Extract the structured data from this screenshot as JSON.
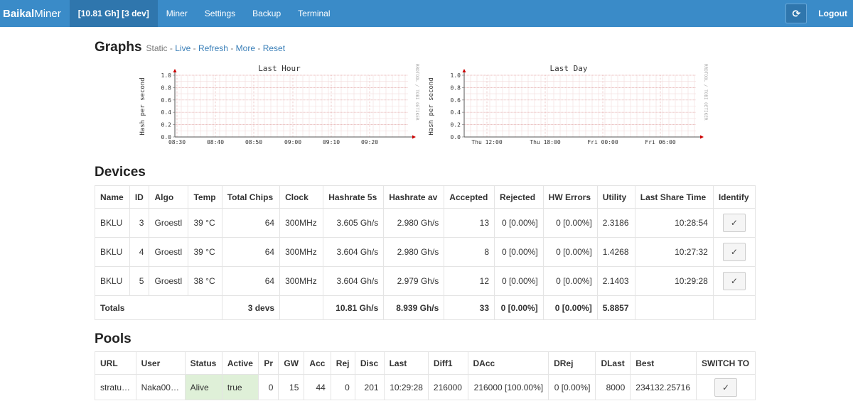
{
  "navbar": {
    "brand_bold": "Baikal",
    "brand_light": "Miner",
    "items": [
      {
        "label": "[10.81 Gh] [3 dev]"
      },
      {
        "label": "Miner"
      },
      {
        "label": "Settings"
      },
      {
        "label": "Backup"
      },
      {
        "label": "Terminal"
      }
    ],
    "refresh_glyph": "⟳",
    "logout": "Logout"
  },
  "graphs": {
    "title": "Graphs",
    "links": {
      "static": "Static",
      "live": "Live",
      "refresh": "Refresh",
      "more": "More",
      "reset": "Reset",
      "sep": "-"
    },
    "hour": {
      "title": "Last Hour",
      "ylabel": "Hash per second",
      "side": "RRDTOOL / TOBI OETIKER",
      "yticks": [
        "1.0",
        "0.8",
        "0.6",
        "0.4",
        "0.2",
        "0.0"
      ],
      "xticks": [
        "08:30",
        "08:40",
        "08:50",
        "09:00",
        "09:10",
        "09:20"
      ]
    },
    "day": {
      "title": "Last Day",
      "ylabel": "Hash per second",
      "side": "RRDTOOL / TOBI OETIKER",
      "yticks": [
        "1.0",
        "0.8",
        "0.6",
        "0.4",
        "0.2",
        "0.0"
      ],
      "xticks": [
        "Thu 12:00",
        "Thu 18:00",
        "Fri 00:00",
        "Fri 06:00"
      ]
    }
  },
  "devices": {
    "title": "Devices",
    "headers": [
      "Name",
      "ID",
      "Algo",
      "Temp",
      "Total Chips",
      "Clock",
      "Hashrate 5s",
      "Hashrate av",
      "Accepted",
      "Rejected",
      "HW Errors",
      "Utility",
      "Last Share Time",
      "Identify"
    ],
    "rows": [
      {
        "name": "BKLU",
        "id": "3",
        "algo": "Groestl",
        "temp": "39 °C",
        "chips": "64",
        "clock": "300MHz",
        "hr5s": "3.605 Gh/s",
        "hrav": "2.980 Gh/s",
        "accepted": "13",
        "rejected": "0 [0.00%]",
        "hw": "0 [0.00%]",
        "utility": "2.3186",
        "last": "10:28:54",
        "identify": "✓"
      },
      {
        "name": "BKLU",
        "id": "4",
        "algo": "Groestl",
        "temp": "39 °C",
        "chips": "64",
        "clock": "300MHz",
        "hr5s": "3.604 Gh/s",
        "hrav": "2.980 Gh/s",
        "accepted": "8",
        "rejected": "0 [0.00%]",
        "hw": "0 [0.00%]",
        "utility": "1.4268",
        "last": "10:27:32",
        "identify": "✓"
      },
      {
        "name": "BKLU",
        "id": "5",
        "algo": "Groestl",
        "temp": "38 °C",
        "chips": "64",
        "clock": "300MHz",
        "hr5s": "3.604 Gh/s",
        "hrav": "2.979 Gh/s",
        "accepted": "12",
        "rejected": "0 [0.00%]",
        "hw": "0 [0.00%]",
        "utility": "2.1403",
        "last": "10:29:28",
        "identify": "✓"
      }
    ],
    "totals": {
      "label": "Totals",
      "chips": "3 devs",
      "hr5s": "10.81 Gh/s",
      "hrav": "8.939 Gh/s",
      "accepted": "33",
      "rejected": "0 [0.00%]",
      "hw": "0 [0.00%]",
      "utility": "5.8857"
    }
  },
  "pools": {
    "title": "Pools",
    "headers": [
      "URL",
      "User",
      "Status",
      "Active",
      "Pr",
      "GW",
      "Acc",
      "Rej",
      "Disc",
      "Last",
      "Diff1",
      "DAcc",
      "DRej",
      "DLast",
      "Best",
      "SWITCH TO"
    ],
    "rows": [
      {
        "url": "stratu…",
        "user": "Naka00…",
        "status": "Alive",
        "active": "true",
        "pr": "0",
        "gw": "15",
        "acc": "44",
        "rej": "0",
        "disc": "201",
        "last": "10:29:28",
        "diff1": "216000",
        "dacc": "216000 [100.00%]",
        "drej": "0 [0.00%]",
        "dlast": "8000",
        "best": "234132.25716",
        "switch": "✓"
      }
    ]
  },
  "colors": {
    "navbar": "#3a8bc8",
    "navbar_active": "#2f76ad",
    "link": "#3a7fb8",
    "alive_bg": "#dff0d8"
  }
}
